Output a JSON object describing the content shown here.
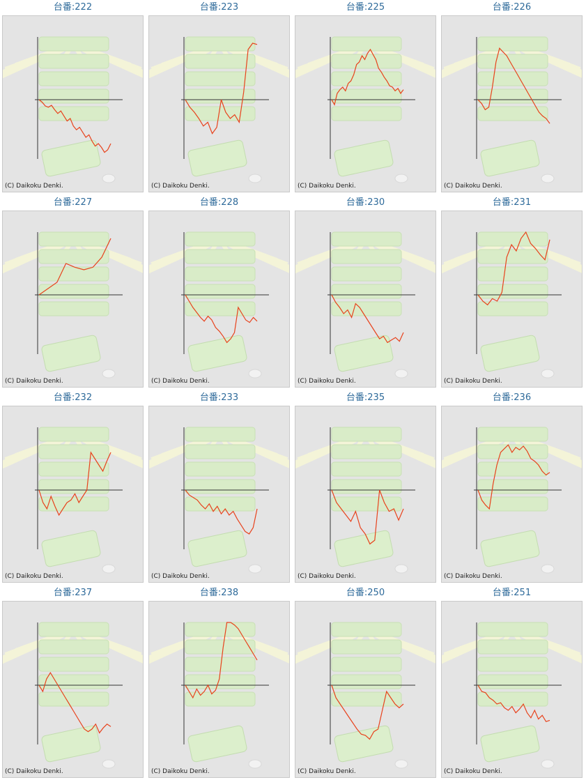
{
  "colors": {
    "title": "#2e6a9a",
    "line": "#e8421c",
    "axis": "#333333",
    "background": "#e4e4e4"
  },
  "credit": "(C) Daikoku Denki.",
  "chart_data": [
    {
      "type": "line",
      "title": "台番:222",
      "values": [
        0,
        -4,
        -10,
        -12,
        -9,
        -16,
        -22,
        -18,
        -26,
        -34,
        -30,
        -42,
        -48,
        -44,
        -52,
        -60,
        -56,
        -66,
        -74,
        -70,
        -76,
        -84,
        -80,
        -70
      ]
    },
    {
      "type": "line",
      "title": "台番:223",
      "values": [
        0,
        -12,
        -20,
        -30,
        -42,
        -36,
        -54,
        -44,
        0,
        -20,
        -30,
        -24,
        -36,
        12,
        80,
        90,
        88
      ]
    },
    {
      "type": "line",
      "title": "台番:225",
      "values": [
        0,
        -8,
        10,
        16,
        20,
        14,
        26,
        30,
        40,
        56,
        60,
        70,
        64,
        74,
        80,
        72,
        64,
        50,
        44,
        36,
        30,
        22,
        20,
        14,
        18,
        10,
        16
      ]
    },
    {
      "type": "line",
      "title": "台番:226",
      "values": [
        0,
        -6,
        -16,
        -12,
        20,
        60,
        82,
        76,
        70,
        60,
        50,
        40,
        30,
        20,
        10,
        0,
        -10,
        -20,
        -26,
        -30,
        -38
      ]
    },
    {
      "type": "line",
      "title": "台番:227",
      "values": [
        0,
        10,
        20,
        50,
        44,
        40,
        44,
        60,
        90
      ]
    },
    {
      "type": "line",
      "title": "台番:228",
      "values": [
        0,
        -10,
        -20,
        -28,
        -36,
        -42,
        -34,
        -40,
        -52,
        -58,
        -66,
        -76,
        -70,
        -60,
        -20,
        -30,
        -40,
        -44,
        -36,
        -42
      ]
    },
    {
      "type": "line",
      "title": "台番:230",
      "values": [
        0,
        -12,
        -20,
        -30,
        -24,
        -36,
        -14,
        -20,
        -30,
        -40,
        -50,
        -60,
        -70,
        -66,
        -76,
        -72,
        -68,
        -74,
        -60
      ]
    },
    {
      "type": "line",
      "title": "台番:231",
      "values": [
        0,
        -10,
        -16,
        -6,
        -10,
        4,
        60,
        80,
        70,
        90,
        100,
        82,
        74,
        64,
        56,
        88
      ]
    },
    {
      "type": "line",
      "title": "台番:232",
      "values": [
        0,
        -20,
        -30,
        -10,
        -26,
        -40,
        -30,
        -20,
        -16,
        -6,
        -20,
        -10,
        0,
        60,
        50,
        40,
        30,
        46,
        60
      ]
    },
    {
      "type": "line",
      "title": "台番:233",
      "values": [
        0,
        -8,
        -12,
        -16,
        -24,
        -30,
        -22,
        -34,
        -26,
        -38,
        -30,
        -40,
        -34,
        -46,
        -56,
        -66,
        -70,
        -60,
        -30
      ]
    },
    {
      "type": "line",
      "title": "台番:235",
      "values": [
        0,
        -20,
        -30,
        -40,
        -50,
        -34,
        -60,
        -70,
        -86,
        -80,
        0,
        -20,
        -34,
        -30,
        -48,
        -30
      ]
    },
    {
      "type": "line",
      "title": "台番:236",
      "values": [
        0,
        -16,
        -24,
        -30,
        10,
        40,
        60,
        66,
        72,
        60,
        68,
        64,
        70,
        62,
        50,
        46,
        40,
        30,
        24,
        28
      ]
    },
    {
      "type": "line",
      "title": "台番:237",
      "values": [
        0,
        -10,
        10,
        20,
        10,
        0,
        -10,
        -20,
        -30,
        -40,
        -50,
        -60,
        -70,
        -74,
        -70,
        -62,
        -76,
        -68,
        -62,
        -66
      ]
    },
    {
      "type": "line",
      "title": "台番:238",
      "values": [
        0,
        -10,
        -20,
        -6,
        -16,
        -10,
        0,
        -14,
        -8,
        10,
        60,
        110,
        100,
        96,
        90,
        80,
        70,
        60,
        50,
        40
      ]
    },
    {
      "type": "line",
      "title": "台番:250",
      "values": [
        0,
        -20,
        -30,
        -40,
        -50,
        -60,
        -70,
        -78,
        -80,
        -86,
        -74,
        -70,
        -40,
        -10,
        -20,
        -30,
        -36,
        -30
      ]
    },
    {
      "type": "line",
      "title": "台番:251",
      "values": [
        0,
        -10,
        -12,
        -20,
        -24,
        -30,
        -28,
        -36,
        -40,
        -34,
        -44,
        -38,
        -30,
        -44,
        -52,
        -40,
        -54,
        -48,
        -58,
        -56
      ]
    }
  ]
}
